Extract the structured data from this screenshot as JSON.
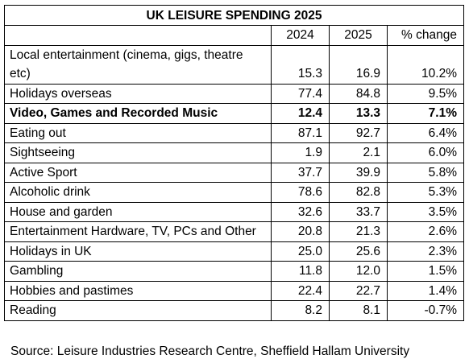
{
  "chart_data": {
    "type": "table",
    "title": "UK LEISURE SPENDING 2025",
    "columns": [
      "",
      "2024",
      "2025",
      "% change"
    ],
    "rows": [
      {
        "category": "Local entertainment (cinema, gigs, theatre etc)",
        "y2024": "15.3",
        "y2025": "16.9",
        "change": "10.2%",
        "bold": false
      },
      {
        "category": "Holidays overseas",
        "y2024": "77.4",
        "y2025": "84.8",
        "change": "9.5%",
        "bold": false
      },
      {
        "category": "Video, Games and Recorded Music",
        "y2024": "12.4",
        "y2025": "13.3",
        "change": "7.1%",
        "bold": true
      },
      {
        "category": "Eating out",
        "y2024": "87.1",
        "y2025": "92.7",
        "change": "6.4%",
        "bold": false
      },
      {
        "category": "Sightseeing",
        "y2024": "1.9",
        "y2025": "2.1",
        "change": "6.0%",
        "bold": false
      },
      {
        "category": "Active Sport",
        "y2024": "37.7",
        "y2025": "39.9",
        "change": "5.8%",
        "bold": false
      },
      {
        "category": "Alcoholic drink",
        "y2024": "78.6",
        "y2025": "82.8",
        "change": "5.3%",
        "bold": false
      },
      {
        "category": "House and garden",
        "y2024": "32.6",
        "y2025": "33.7",
        "change": "3.5%",
        "bold": false
      },
      {
        "category": "Entertainment Hardware, TV, PCs and Other",
        "y2024": "20.8",
        "y2025": "21.3",
        "change": "2.6%",
        "bold": false
      },
      {
        "category": "Holidays in UK",
        "y2024": "25.0",
        "y2025": "25.6",
        "change": "2.3%",
        "bold": false
      },
      {
        "category": "Gambling",
        "y2024": "11.8",
        "y2025": "12.0",
        "change": "1.5%",
        "bold": false
      },
      {
        "category": "Hobbies and pastimes",
        "y2024": "22.4",
        "y2025": "22.7",
        "change": "1.4%",
        "bold": false
      },
      {
        "category": "Reading",
        "y2024": "8.2",
        "y2025": "8.1",
        "change": "-0.7%",
        "bold": false
      }
    ],
    "source": "Source: Leisure Industries Research Centre, Sheffield Hallam University"
  }
}
